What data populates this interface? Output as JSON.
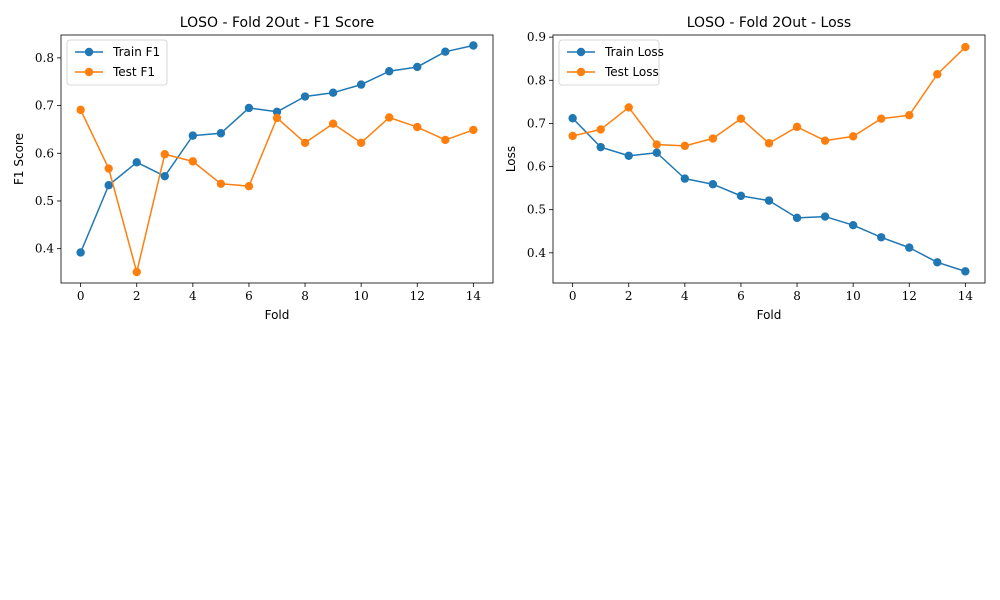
{
  "chart_data": [
    {
      "type": "line",
      "title": "LOSO - Fold 2Out - F1 Score",
      "xlabel": "Fold",
      "ylabel": "F1 Score",
      "x": [
        0,
        1,
        2,
        3,
        4,
        5,
        6,
        7,
        8,
        9,
        10,
        11,
        12,
        13,
        14
      ],
      "xticks": [
        0,
        2,
        4,
        6,
        8,
        10,
        12,
        14
      ],
      "xlim": [
        -0.7,
        14.7
      ],
      "yticks": [
        0.4,
        0.5,
        0.6,
        0.7,
        0.8
      ],
      "ylim": [
        0.328,
        0.848
      ],
      "legend_position": "upper left",
      "series": [
        {
          "name": "Train F1",
          "color": "#1f77b4",
          "values": [
            0.392,
            0.533,
            0.581,
            0.552,
            0.637,
            0.642,
            0.695,
            0.687,
            0.719,
            0.727,
            0.744,
            0.772,
            0.781,
            0.813,
            0.826
          ]
        },
        {
          "name": "Test F1",
          "color": "#ff7f0e",
          "values": [
            0.691,
            0.568,
            0.351,
            0.598,
            0.583,
            0.536,
            0.531,
            0.674,
            0.622,
            0.662,
            0.622,
            0.675,
            0.655,
            0.628,
            0.649
          ]
        }
      ]
    },
    {
      "type": "line",
      "title": "LOSO - Fold 2Out - Loss",
      "xlabel": "Fold",
      "ylabel": "Loss",
      "x": [
        0,
        1,
        2,
        3,
        4,
        5,
        6,
        7,
        8,
        9,
        10,
        11,
        12,
        13,
        14
      ],
      "xticks": [
        0,
        2,
        4,
        6,
        8,
        10,
        12,
        14
      ],
      "xlim": [
        -0.7,
        14.7
      ],
      "yticks": [
        0.4,
        0.5,
        0.6,
        0.7,
        0.8,
        0.9
      ],
      "ylim": [
        0.33,
        0.905
      ],
      "legend_position": "upper left",
      "series": [
        {
          "name": "Train Loss",
          "color": "#1f77b4",
          "values": [
            0.712,
            0.645,
            0.625,
            0.632,
            0.572,
            0.559,
            0.532,
            0.521,
            0.481,
            0.484,
            0.464,
            0.436,
            0.412,
            0.378,
            0.357
          ]
        },
        {
          "name": "Test Loss",
          "color": "#ff7f0e",
          "values": [
            0.671,
            0.686,
            0.737,
            0.651,
            0.648,
            0.665,
            0.711,
            0.654,
            0.692,
            0.66,
            0.67,
            0.711,
            0.719,
            0.814,
            0.877
          ]
        }
      ]
    }
  ]
}
